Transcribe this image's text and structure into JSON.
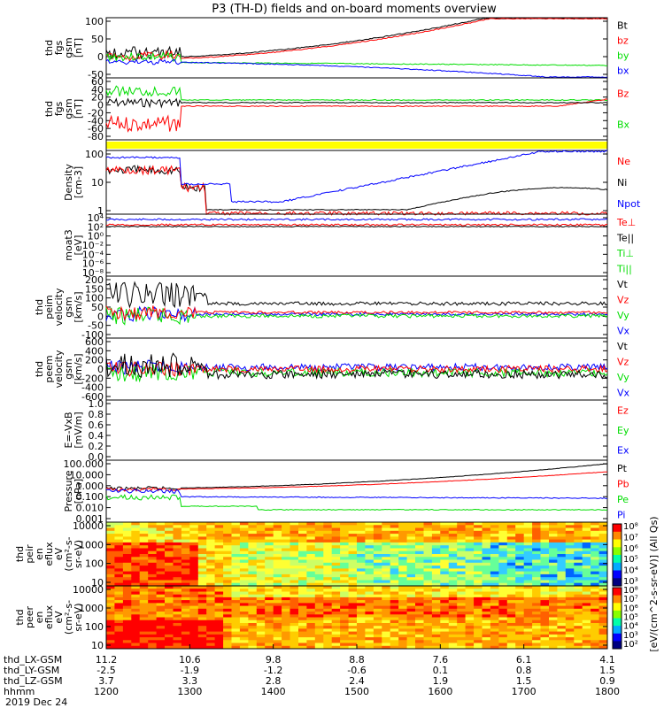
{
  "title": "P3 (TH-D) fields and on-board moments overview",
  "date": "2019 Dec 24",
  "colors": {
    "black": "#000000",
    "red": "#ff0000",
    "green": "#00dd00",
    "blue": "#0000ff",
    "yellow": "#ffff00"
  },
  "chart_data": {
    "type": "line",
    "x_range": [
      "12:00",
      "18:00"
    ],
    "panels": [
      {
        "id": "fgs-gsm",
        "ylabel": [
          "thd",
          "fgs",
          "gsm",
          "[nT]"
        ],
        "yticks": [
          "100",
          "50",
          "0",
          "-50"
        ],
        "ylim": [
          -50,
          100
        ],
        "series": [
          {
            "name": "Bt",
            "color": "black"
          },
          {
            "name": "bz",
            "color": "red"
          },
          {
            "name": "by",
            "color": "green"
          },
          {
            "name": "bx",
            "color": "blue"
          }
        ]
      },
      {
        "id": "fgs-dsl",
        "ylabel": [
          "thd",
          "fgs",
          "gsm",
          "[nT]"
        ],
        "yticks": [
          "60",
          "40",
          "20",
          "0",
          "-20",
          "-40",
          "-60",
          "-80"
        ],
        "ylim": [
          -80,
          60
        ],
        "series": [
          {
            "name": "Bz",
            "color": "red"
          },
          {
            "name": "Bx",
            "color": "green"
          }
        ]
      },
      {
        "id": "flag-bar",
        "ylabel": [],
        "yticks": [],
        "series": []
      },
      {
        "id": "density",
        "ylabel": [
          "Density",
          "[cm-3]"
        ],
        "yticks": [
          "100",
          "10",
          "1"
        ],
        "log": true,
        "series": [
          {
            "name": "Ne",
            "color": "red"
          },
          {
            "name": "Ni",
            "color": "black"
          },
          {
            "name": "Npot",
            "color": "blue"
          }
        ]
      },
      {
        "id": "temperature",
        "ylabel": [
          "moat3",
          "[eV]"
        ],
        "yticks": [
          "10⁴",
          "10²",
          "10⁰",
          "10⁻²",
          "10⁻⁴",
          "10⁻⁶",
          "10⁻⁸"
        ],
        "log": true,
        "series": [
          {
            "name": "Te⊥",
            "color": "red"
          },
          {
            "name": "Te||",
            "color": "black"
          },
          {
            "name": "Ti⊥",
            "color": "green"
          },
          {
            "name": "Ti||",
            "color": "green"
          }
        ]
      },
      {
        "id": "peim-velocity",
        "ylabel": [
          "thd",
          "peim",
          "velocity",
          "gsm",
          "[km/s]"
        ],
        "yticks": [
          "200",
          "150",
          "100",
          "50",
          "0",
          "-50",
          "-100"
        ],
        "ylim": [
          -100,
          200
        ],
        "series": [
          {
            "name": "Vt",
            "color": "black"
          },
          {
            "name": "Vz",
            "color": "red"
          },
          {
            "name": "Vy",
            "color": "green"
          },
          {
            "name": "Vx",
            "color": "blue"
          }
        ]
      },
      {
        "id": "peem-velocity",
        "ylabel": [
          "thd",
          "peem",
          "velocity",
          "gsm",
          "[km/s]"
        ],
        "yticks": [
          "600",
          "400",
          "200",
          "0",
          "-200",
          "-400",
          "-600"
        ],
        "ylim": [
          -600,
          600
        ],
        "series": [
          {
            "name": "Vt",
            "color": "black"
          },
          {
            "name": "Vz",
            "color": "red"
          },
          {
            "name": "Vy",
            "color": "green"
          },
          {
            "name": "Vx",
            "color": "blue"
          }
        ]
      },
      {
        "id": "efield",
        "ylabel": [
          "E=-VxB",
          "[mV/m]"
        ],
        "yticks": [
          "1.0",
          "0.8",
          "0.6",
          "0.4",
          "0.2",
          "0.0"
        ],
        "ylim": [
          0,
          1
        ],
        "series": [
          {
            "name": "Ez",
            "color": "red"
          },
          {
            "name": "Ey",
            "color": "green"
          },
          {
            "name": "Ex",
            "color": "blue"
          }
        ]
      },
      {
        "id": "pressure",
        "ylabel": [
          "Pressure",
          "[nPa]"
        ],
        "yticks": [
          "100.000",
          "10.000",
          "1.000",
          "0.100",
          "0.010",
          "0.001"
        ],
        "log": true,
        "series": [
          {
            "name": "Pt",
            "color": "black"
          },
          {
            "name": "Pb",
            "color": "red"
          },
          {
            "name": "Pe",
            "color": "green"
          },
          {
            "name": "Pi",
            "color": "blue"
          }
        ]
      },
      {
        "id": "peir-spectrogram",
        "ylabel": [
          "thd",
          "peir",
          "en",
          "eflux",
          "eV",
          "(cm²-s-",
          "sr-eV)"
        ],
        "yticks": [
          "10000",
          "1000",
          "100",
          "10"
        ],
        "log": true
      },
      {
        "id": "peer-spectrogram",
        "ylabel": [
          "thd",
          "peer",
          "en",
          "eflux",
          "eV",
          "(cm²-s-",
          "sr-eV)"
        ],
        "yticks": [
          "10000",
          "1000",
          "100",
          "10"
        ],
        "log": true
      }
    ],
    "colorbar": {
      "label": "[eV/(cm^2-s-sr-eV)] (All Qs)",
      "ticks_top": [
        "10⁸",
        "10⁷",
        "10⁶",
        "10⁵",
        "10⁴",
        "10³"
      ],
      "ticks_bottom": [
        "10⁸",
        "10⁷",
        "10⁶",
        "10⁵",
        "10⁴",
        "10³",
        "10²"
      ]
    },
    "x_axis_rows": [
      {
        "label": "thd_LX-GSM",
        "values": [
          "11.2",
          "10.6",
          "9.8",
          "8.8",
          "7.6",
          "6.1",
          "4.1"
        ]
      },
      {
        "label": "thd_LY-GSM",
        "values": [
          "-2.5",
          "-1.9",
          "-1.2",
          "-0.6",
          "0.1",
          "0.8",
          "1.5"
        ]
      },
      {
        "label": "thd_LZ-GSM",
        "values": [
          "3.7",
          "3.3",
          "2.8",
          "2.4",
          "1.9",
          "1.5",
          "0.9"
        ]
      },
      {
        "label": "hhmm",
        "values": [
          "1200",
          "1300",
          "1400",
          "1500",
          "1600",
          "1700",
          "1800"
        ]
      }
    ]
  }
}
